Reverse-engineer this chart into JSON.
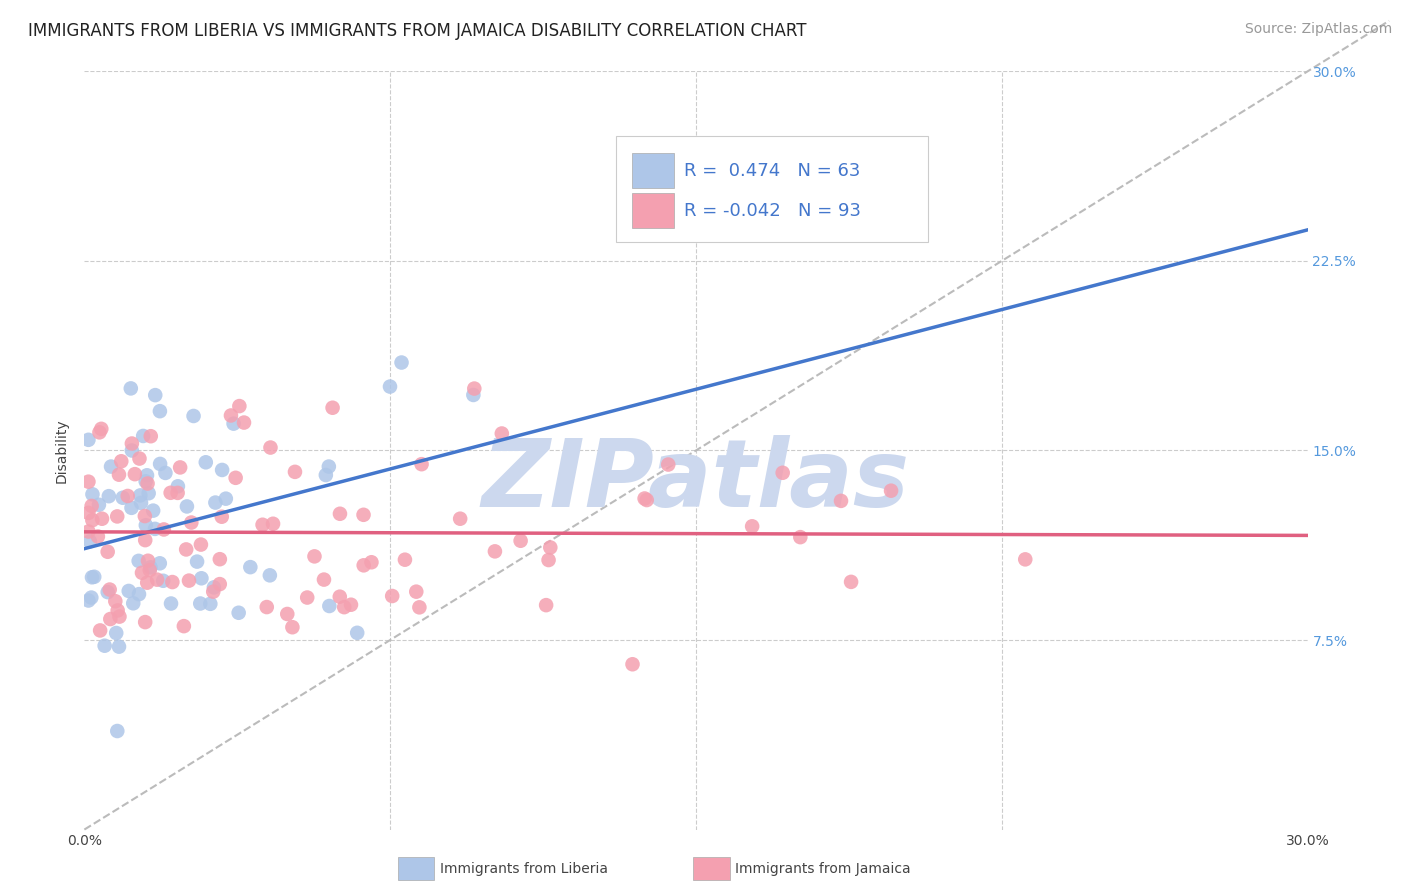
{
  "title": "IMMIGRANTS FROM LIBERIA VS IMMIGRANTS FROM JAMAICA DISABILITY CORRELATION CHART",
  "source": "Source: ZipAtlas.com",
  "ylabel": "Disability",
  "xlim": [
    0.0,
    0.3
  ],
  "ylim": [
    0.0,
    0.3
  ],
  "ytick_values": [
    0.075,
    0.15,
    0.225,
    0.3
  ],
  "ytick_labels": [
    "7.5%",
    "15.0%",
    "22.5%",
    "30.0%"
  ],
  "xtick_values": [
    0.0,
    0.3
  ],
  "xtick_labels": [
    "0.0%",
    "30.0%"
  ],
  "grid_color": "#cccccc",
  "background_color": "#ffffff",
  "liberia_color": "#aec6e8",
  "jamaica_color": "#f4a0b0",
  "liberia_line_color": "#4477cc",
  "jamaica_line_color": "#e06080",
  "dashed_line_color": "#bbbbbb",
  "R_liberia": 0.474,
  "N_liberia": 63,
  "R_jamaica": -0.042,
  "N_jamaica": 93,
  "legend_text_color": "#4477cc",
  "watermark_color": "#ccd8ee",
  "title_fontsize": 12,
  "axis_label_fontsize": 10,
  "tick_label_fontsize": 10,
  "legend_fontsize": 13,
  "source_fontsize": 10,
  "right_tick_color": "#5599dd"
}
